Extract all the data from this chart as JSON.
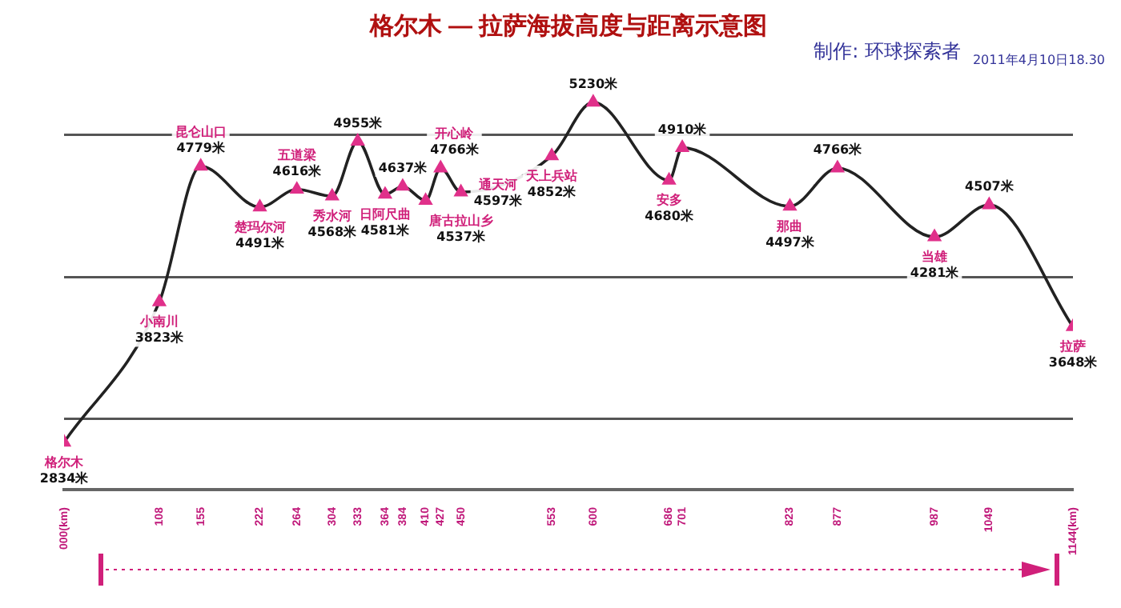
{
  "chart_data": {
    "type": "line",
    "title": "格尔木 — 拉萨海拔高度与距离示意图",
    "x": [
      0,
      108,
      155,
      222,
      264,
      304,
      333,
      364,
      384,
      410,
      427,
      450,
      553,
      600,
      686,
      701,
      823,
      877,
      987,
      1049,
      1144
    ],
    "series": [
      {
        "color": "#222222",
        "values": [
          2834,
          3823,
          4779,
          4491,
          4616,
          4568,
          4955,
          4581,
          4637,
          4537,
          4766,
          4597,
          4852,
          5230,
          4680,
          4910,
          4497,
          4766,
          4281,
          4507,
          3648
        ],
        "value_labels": [
          "2834米",
          "3823米",
          "4779米",
          "4491米",
          "4616米",
          "4568米",
          "4955米",
          "4581米",
          "4637米",
          "4537米",
          "4766米",
          "4597米",
          "4852米",
          "5230米",
          "4680米",
          "4910米",
          "4497米",
          "4766米",
          "4281米",
          "4507米",
          "3648米"
        ]
      }
    ],
    "xlim": [
      0,
      1144
    ],
    "xticks": [
      {
        "value": 0,
        "label": "000(km)"
      },
      108,
      155,
      222,
      264,
      304,
      333,
      364,
      384,
      410,
      427,
      450,
      553,
      600,
      686,
      701,
      823,
      877,
      987,
      1049,
      {
        "value": 1144,
        "label": "1144(km)"
      }
    ],
    "yticks": [
      {
        "value": 3000,
        "label": null
      },
      {
        "value": 4000,
        "label": null
      },
      {
        "value": 5000,
        "label": null
      }
    ],
    "tick_labels": "x",
    "grid": "y",
    "legend": false,
    "marker": "triangle",
    "line_style": "solid",
    "annotations": [
      "制作: 环球探索者",
      "2011年4月10日18.30",
      {
        "text": "格尔木",
        "x": 0,
        "y": 2834
      },
      {
        "text": "小南川",
        "x": 108,
        "y": 3823
      },
      {
        "text": "昆仑山口",
        "x": 155,
        "y": 4779
      },
      {
        "text": "楚玛尔河",
        "x": 222,
        "y": 4491
      },
      {
        "text": "五道梁",
        "x": 264,
        "y": 4616
      },
      {
        "text": "秀水河",
        "x": 304,
        "y": 4568
      },
      {
        "text": "日阿尺曲",
        "x": 364,
        "y": 4581
      },
      {
        "text": "唐古拉山乡",
        "x": 410,
        "y": 4537
      },
      {
        "text": "开心岭",
        "x": 427,
        "y": 4766
      },
      {
        "text": "通天河",
        "x": 450,
        "y": 4597
      },
      {
        "text": "天上兵站",
        "x": 553,
        "y": 4852
      },
      {
        "text": "安多",
        "x": 686,
        "y": 4680
      },
      {
        "text": "那曲",
        "x": 823,
        "y": 4497
      },
      {
        "text": "当雄",
        "x": 987,
        "y": 4281
      },
      {
        "text": "拉萨",
        "x": 1144,
        "y": 3648
      }
    ]
  }
}
